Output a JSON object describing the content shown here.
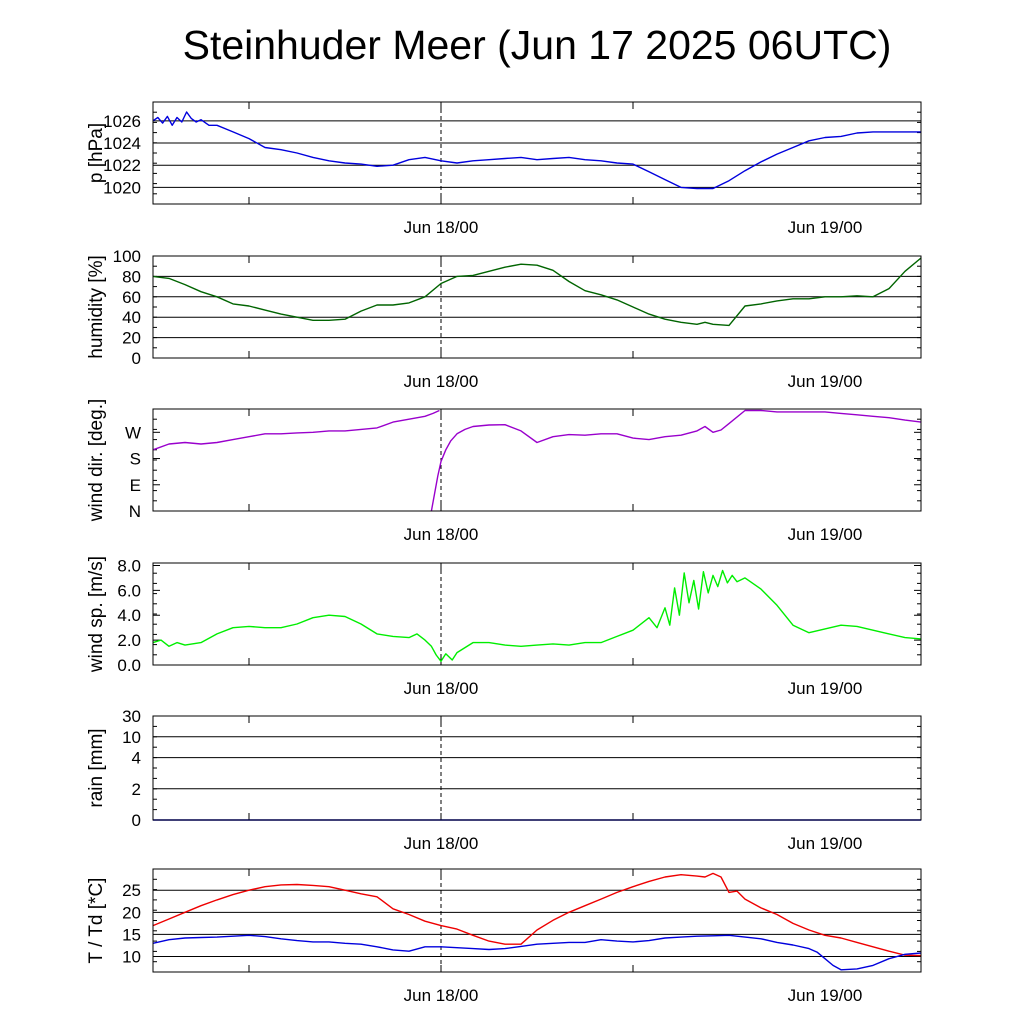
{
  "title": "Steinhuder Meer (Jun 17 2025 06UTC)",
  "chart_data": [
    {
      "type": "line",
      "ylabel": "p [hPa]",
      "x_ticks": [
        "Jun 18/00",
        "Jun 19/00"
      ],
      "ylim": [
        1018.5,
        1027.7
      ],
      "yticks": [
        {
          "v": 1020,
          "label": "1020"
        },
        {
          "v": 1022,
          "label": "1022"
        },
        {
          "v": 1024,
          "label": "1024"
        },
        {
          "v": 1026,
          "label": "1026"
        }
      ],
      "grid": true,
      "series": [
        {
          "color": "#0000dd",
          "x": [
            6,
            6.3,
            6.6,
            6.9,
            7.2,
            7.5,
            7.8,
            8.1,
            8.4,
            8.7,
            9,
            9.5,
            10,
            11,
            12,
            13,
            14,
            15,
            16,
            17,
            18,
            19,
            20,
            21,
            22,
            23,
            24,
            25,
            26,
            27,
            28,
            29,
            30,
            31,
            32,
            33,
            34,
            35,
            36,
            37,
            38,
            39,
            40,
            41,
            42,
            43,
            44,
            45,
            46,
            47,
            48,
            49,
            50,
            51,
            52,
            53,
            54
          ],
          "y": [
            1026,
            1026.3,
            1025.8,
            1026.4,
            1025.6,
            1026.3,
            1025.9,
            1026.8,
            1026.2,
            1025.9,
            1026.1,
            1025.6,
            1025.6,
            1025,
            1024.4,
            1023.6,
            1023.4,
            1023.1,
            1022.7,
            1022.4,
            1022.2,
            1022.1,
            1021.9,
            1022,
            1022.5,
            1022.7,
            1022.4,
            1022.2,
            1022.4,
            1022.5,
            1022.6,
            1022.7,
            1022.5,
            1022.6,
            1022.7,
            1022.5,
            1022.4,
            1022.2,
            1022.1,
            1021.4,
            1020.7,
            1020,
            1019.9,
            1019.9,
            1020.6,
            1021.5,
            1022.3,
            1023,
            1023.6,
            1024.2,
            1024.5,
            1024.6,
            1024.9,
            1025,
            1025,
            1025,
            1025
          ]
        }
      ]
    },
    {
      "type": "line",
      "ylabel": "humidity [%]",
      "x_ticks": [
        "Jun 18/00",
        "Jun 19/00"
      ],
      "ylim": [
        0,
        100
      ],
      "yticks": [
        {
          "v": 0,
          "label": "0"
        },
        {
          "v": 20,
          "label": "20"
        },
        {
          "v": 40,
          "label": "40"
        },
        {
          "v": 60,
          "label": "60"
        },
        {
          "v": 80,
          "label": "80"
        },
        {
          "v": 100,
          "label": "100"
        }
      ],
      "grid": true,
      "series": [
        {
          "color": "#006400",
          "x": [
            6,
            7,
            8,
            9,
            10,
            11,
            12,
            13,
            14,
            15,
            16,
            17,
            18,
            19,
            20,
            21,
            22,
            23,
            24,
            25,
            26,
            27,
            28,
            29,
            30,
            31,
            32,
            33,
            34,
            35,
            36,
            37,
            38,
            39,
            40,
            40.5,
            41,
            42,
            43,
            44,
            45,
            46,
            47,
            48,
            49,
            50,
            51,
            52,
            53,
            54
          ],
          "y": [
            80,
            78,
            72,
            65,
            60,
            53,
            51,
            47,
            43,
            40,
            37,
            37,
            38,
            46,
            52,
            52,
            54,
            60,
            73,
            80,
            81,
            85,
            89,
            92,
            91,
            86,
            75,
            66,
            62,
            57,
            50,
            43,
            38,
            35,
            33,
            35,
            33,
            32,
            51,
            53,
            56,
            58,
            58,
            60,
            60,
            61,
            60,
            68,
            85,
            98
          ]
        }
      ]
    },
    {
      "type": "scatter",
      "ylabel": "wind dir. [deg.]",
      "x_ticks": [
        "Jun 18/00",
        "Jun 19/00"
      ],
      "ylim": [
        0,
        350
      ],
      "yticks": [
        {
          "v": 0,
          "label": "N"
        },
        {
          "v": 90,
          "label": "E"
        },
        {
          "v": 180,
          "label": "S"
        },
        {
          "v": 270,
          "label": "W"
        }
      ],
      "grid": false,
      "series": [
        {
          "color": "#9900cc",
          "x": [
            6,
            7,
            8,
            9,
            10,
            11,
            12,
            13,
            14,
            15,
            16,
            17,
            18,
            19,
            20,
            21,
            22,
            23,
            23.5,
            23.9
          ],
          "y": [
            210,
            230,
            235,
            230,
            235,
            245,
            255,
            265,
            265,
            268,
            270,
            275,
            275,
            280,
            285,
            305,
            315,
            325,
            335,
            345
          ]
        },
        {
          "color": "#9900cc",
          "x": [
            23.4,
            23.6,
            23.8,
            24,
            24.3,
            24.6,
            25,
            25.5,
            26,
            27,
            28,
            29,
            30,
            31,
            32,
            33,
            34,
            35,
            36,
            37,
            38,
            39,
            40,
            40.5,
            41,
            41.5,
            42,
            43,
            44,
            45,
            46,
            47,
            48,
            49,
            50,
            51,
            52,
            53,
            54
          ],
          "y": [
            0,
            60,
            120,
            170,
            210,
            240,
            265,
            280,
            290,
            295,
            296,
            275,
            235,
            255,
            262,
            260,
            265,
            265,
            250,
            245,
            255,
            260,
            275,
            290,
            270,
            278,
            300,
            345,
            345,
            340,
            340,
            340,
            340,
            335,
            330,
            325,
            320,
            312,
            305
          ]
        }
      ]
    },
    {
      "type": "line",
      "ylabel": "wind sp. [m/s]",
      "x_ticks": [
        "Jun 18/00",
        "Jun 19/00"
      ],
      "ylim": [
        0,
        8.2
      ],
      "yticks": [
        {
          "v": 0,
          "label": "0.0"
        },
        {
          "v": 2,
          "label": "2.0"
        },
        {
          "v": 4,
          "label": "4.0"
        },
        {
          "v": 6,
          "label": "6.0"
        },
        {
          "v": 8,
          "label": "8.0"
        }
      ],
      "grid": false,
      "series": [
        {
          "color": "#00ee00",
          "x": [
            6,
            6.5,
            7,
            7.5,
            8,
            9,
            10,
            11,
            12,
            13,
            14,
            15,
            16,
            17,
            18,
            19,
            20,
            21,
            22,
            22.5,
            23,
            23.4,
            23.7,
            24,
            24.3,
            24.7,
            25,
            26,
            27,
            28,
            29,
            30,
            31,
            32,
            33,
            34,
            35,
            36,
            37,
            37.5,
            38,
            38.3,
            38.6,
            38.9,
            39.2,
            39.5,
            39.8,
            40.1,
            40.4,
            40.7,
            41,
            41.3,
            41.6,
            41.9,
            42.2,
            42.5,
            43,
            44,
            45,
            46,
            47,
            48,
            49,
            50,
            51,
            52,
            53,
            54
          ],
          "y": [
            1.8,
            2.0,
            1.5,
            1.8,
            1.6,
            1.8,
            2.5,
            3.0,
            3.1,
            3.0,
            3.0,
            3.3,
            3.8,
            4.0,
            3.9,
            3.3,
            2.5,
            2.3,
            2.2,
            2.5,
            2.0,
            1.5,
            0.8,
            0.3,
            0.9,
            0.4,
            1.0,
            1.8,
            1.8,
            1.6,
            1.5,
            1.6,
            1.7,
            1.6,
            1.8,
            1.8,
            2.3,
            2.8,
            3.8,
            3.0,
            4.6,
            3.2,
            6.2,
            4.0,
            7.4,
            5.0,
            6.8,
            4.5,
            7.5,
            5.8,
            7.2,
            6.3,
            7.6,
            6.6,
            7.2,
            6.7,
            7.0,
            6.1,
            4.8,
            3.2,
            2.6,
            2.9,
            3.2,
            3.1,
            2.8,
            2.5,
            2.2,
            2.1
          ]
        }
      ]
    },
    {
      "type": "line",
      "ylabel": "rain [mm]",
      "x_ticks": [
        "Jun 18/00",
        "Jun 19/00"
      ],
      "ylim": [
        0,
        30
      ],
      "yticks": [
        {
          "v": 0,
          "label": "0"
        },
        {
          "v": 2,
          "label": "2"
        },
        {
          "v": 4,
          "label": "4"
        },
        {
          "v": 10,
          "label": "10"
        },
        {
          "v": 30,
          "label": "30"
        }
      ],
      "grid": true,
      "series": [
        {
          "color": "#0000dd",
          "x": [
            6,
            54
          ],
          "y": [
            0,
            0
          ]
        }
      ]
    },
    {
      "type": "line",
      "ylabel": "T / Td [*C]",
      "x_ticks": [
        "Jun 18/00",
        "Jun 19/00"
      ],
      "ylim": [
        6.5,
        29.8
      ],
      "yticks": [
        {
          "v": 10,
          "label": "10"
        },
        {
          "v": 15,
          "label": "15"
        },
        {
          "v": 20,
          "label": "20"
        },
        {
          "v": 25,
          "label": "25"
        }
      ],
      "grid": true,
      "series": [
        {
          "color": "#ee0000",
          "x": [
            6,
            7,
            8,
            9,
            10,
            11,
            12,
            13,
            14,
            15,
            16,
            17,
            18,
            19,
            20,
            21,
            22,
            23,
            24,
            25,
            26,
            27,
            28,
            29,
            30,
            31,
            32,
            33,
            34,
            35,
            36,
            37,
            38,
            39,
            40,
            40.5,
            41,
            41.5,
            42,
            42.5,
            43,
            44,
            45,
            46,
            47,
            48,
            49,
            50,
            51,
            52,
            53,
            54
          ],
          "y": [
            17,
            18.5,
            20,
            21.5,
            22.8,
            24,
            25,
            25.8,
            26.2,
            26.3,
            26.1,
            25.8,
            25,
            24.2,
            23.5,
            20.8,
            19.5,
            18,
            17,
            16.2,
            14.8,
            13.5,
            12.8,
            12.8,
            16,
            18.2,
            20,
            21.5,
            23,
            24.5,
            25.8,
            27,
            28,
            28.5,
            28.2,
            28,
            28.8,
            28,
            24.5,
            24.8,
            23,
            21,
            19.5,
            17.5,
            16,
            14.8,
            14.2,
            13.2,
            12.2,
            11.2,
            10.3,
            10.2
          ]
        },
        {
          "color": "#0000dd",
          "x": [
            6,
            7,
            8,
            9,
            10,
            11,
            12,
            13,
            14,
            15,
            16,
            17,
            18,
            19,
            20,
            21,
            22,
            23,
            24,
            25,
            26,
            27,
            28,
            29,
            30,
            31,
            32,
            33,
            34,
            35,
            36,
            37,
            38,
            39,
            40,
            41,
            42,
            43,
            44,
            45,
            46,
            47,
            47.5,
            48,
            48.5,
            49,
            50,
            51,
            52,
            53,
            54
          ],
          "y": [
            13,
            13.8,
            14.2,
            14.3,
            14.4,
            14.6,
            14.8,
            14.5,
            14,
            13.6,
            13.3,
            13.3,
            13,
            12.8,
            12.2,
            11.5,
            11.2,
            12.2,
            12.2,
            12,
            11.8,
            11.6,
            11.8,
            12.3,
            12.8,
            13,
            13.2,
            13.2,
            13.8,
            13.5,
            13.3,
            13.6,
            14.2,
            14.4,
            14.6,
            14.7,
            14.8,
            14.4,
            14,
            13.2,
            12.6,
            11.8,
            11,
            9.5,
            8,
            7,
            7.2,
            8,
            9.5,
            10.5,
            10.8
          ]
        }
      ]
    }
  ]
}
